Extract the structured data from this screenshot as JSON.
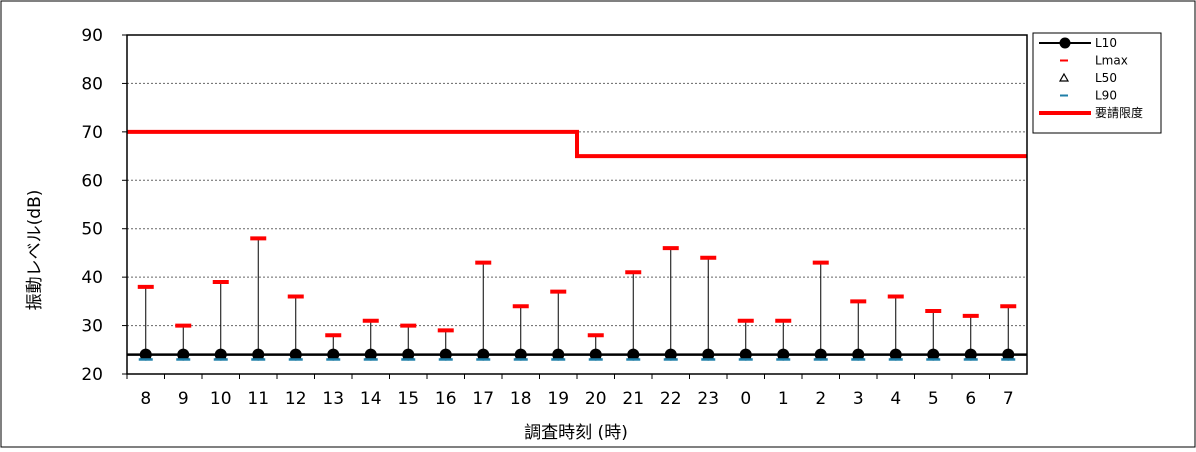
{
  "chart_data": {
    "type": "line",
    "xlabel": "調査時刻 (時)",
    "ylabel": "振動レベル(dB)",
    "ylim": [
      20,
      90
    ],
    "yticks": [
      "20",
      "30",
      "40",
      "50",
      "60",
      "70",
      "80",
      "90"
    ],
    "categories": [
      "8",
      "9",
      "10",
      "11",
      "12",
      "13",
      "14",
      "15",
      "16",
      "17",
      "18",
      "19",
      "20",
      "21",
      "22",
      "23",
      "0",
      "1",
      "2",
      "3",
      "4",
      "5",
      "6",
      "7"
    ],
    "grid": "horizontal dashed",
    "legend_position": "top-right",
    "series": [
      {
        "name": "L10",
        "marker": "circle-line",
        "color": "#000000",
        "values": [
          24,
          24,
          24,
          24,
          24,
          24,
          24,
          24,
          24,
          24,
          24,
          24,
          24,
          24,
          24,
          24,
          24,
          24,
          24,
          24,
          24,
          24,
          24,
          24
        ]
      },
      {
        "name": "Lmax",
        "marker": "dash",
        "color": "#ff0000",
        "values": [
          38,
          30,
          39,
          48,
          36,
          28,
          31,
          30,
          29,
          43,
          34,
          37,
          28,
          41,
          46,
          44,
          31,
          31,
          43,
          35,
          36,
          33,
          32,
          34
        ]
      },
      {
        "name": "L50",
        "marker": "triangle",
        "color": "#000000",
        "values": [
          24,
          24,
          24,
          24,
          24,
          24,
          24,
          24,
          24,
          24,
          24,
          24,
          24,
          24,
          24,
          24,
          24,
          24,
          24,
          24,
          24,
          24,
          24,
          24
        ]
      },
      {
        "name": "L90",
        "marker": "dash",
        "color": "#1f7fa8",
        "values": [
          23,
          23,
          23,
          23,
          23,
          23,
          23,
          23,
          23,
          23,
          23,
          23,
          23,
          23,
          23,
          23,
          23,
          23,
          23,
          23,
          23,
          23,
          23,
          23
        ]
      },
      {
        "name": "要請限度",
        "marker": "thick-line",
        "color": "#ff0000",
        "values": [
          70,
          70,
          70,
          70,
          70,
          70,
          70,
          70,
          70,
          70,
          70,
          70,
          65,
          65,
          65,
          65,
          65,
          65,
          65,
          65,
          65,
          65,
          65,
          65
        ]
      }
    ]
  }
}
